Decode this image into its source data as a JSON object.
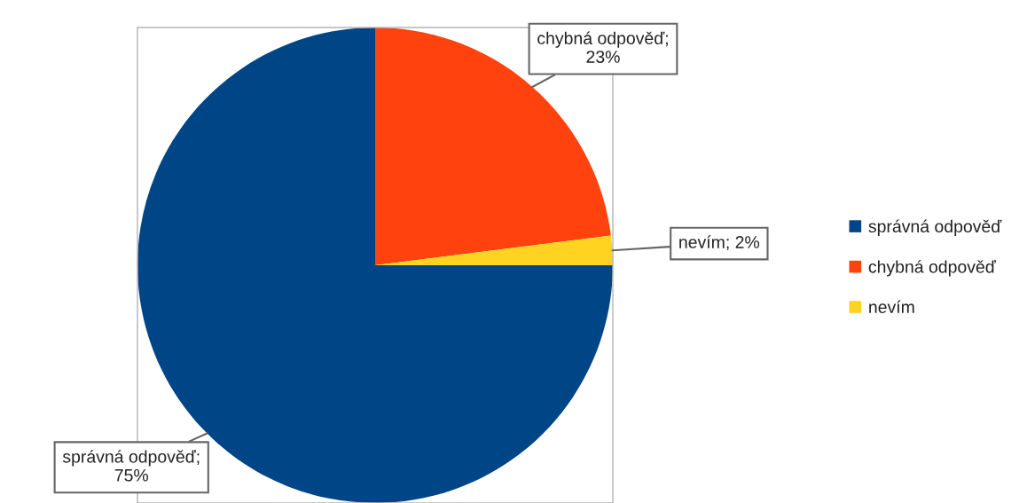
{
  "chart_data": {
    "type": "pie",
    "categories": [
      "správná odpověď",
      "chybná odpověď",
      "nevím"
    ],
    "values": [
      75,
      23,
      2
    ],
    "colors": [
      "#004586",
      "#ff420e",
      "#ffd320"
    ],
    "value_labels": [
      "správná odpověď;\n75%",
      "chybná odpověď;\n23%",
      "nevím; 2%"
    ],
    "legend": "right"
  }
}
